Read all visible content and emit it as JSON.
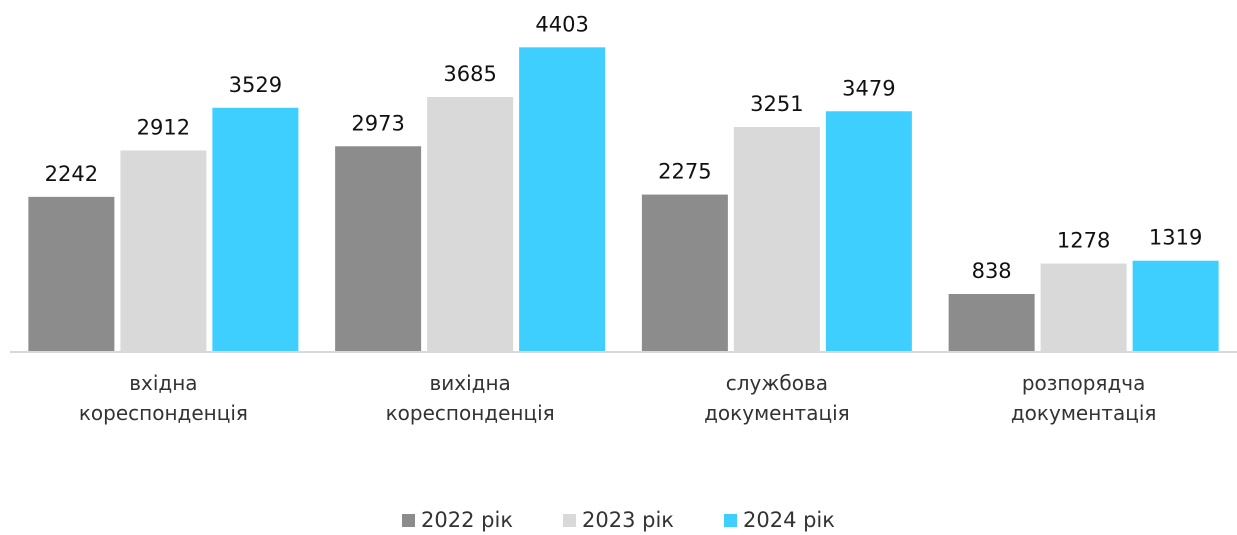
{
  "chart_data": {
    "type": "bar",
    "categories": [
      "вхідна кореспонденція",
      "вихідна кореспонденція",
      "службова документація",
      "розпорядча документація"
    ],
    "series": [
      {
        "name": "2022 рік",
        "color": "#8c8c8c",
        "values": [
          2242,
          2973,
          2275,
          838
        ]
      },
      {
        "name": "2023 рік",
        "color": "#d9d9d9",
        "values": [
          2912,
          3685,
          3251,
          1278
        ]
      },
      {
        "name": "2024 рік",
        "color": "#3fcfff",
        "values": [
          3529,
          4403,
          3479,
          1319
        ]
      }
    ],
    "ylim": [
      0,
      5000
    ],
    "legend": "bottom"
  }
}
